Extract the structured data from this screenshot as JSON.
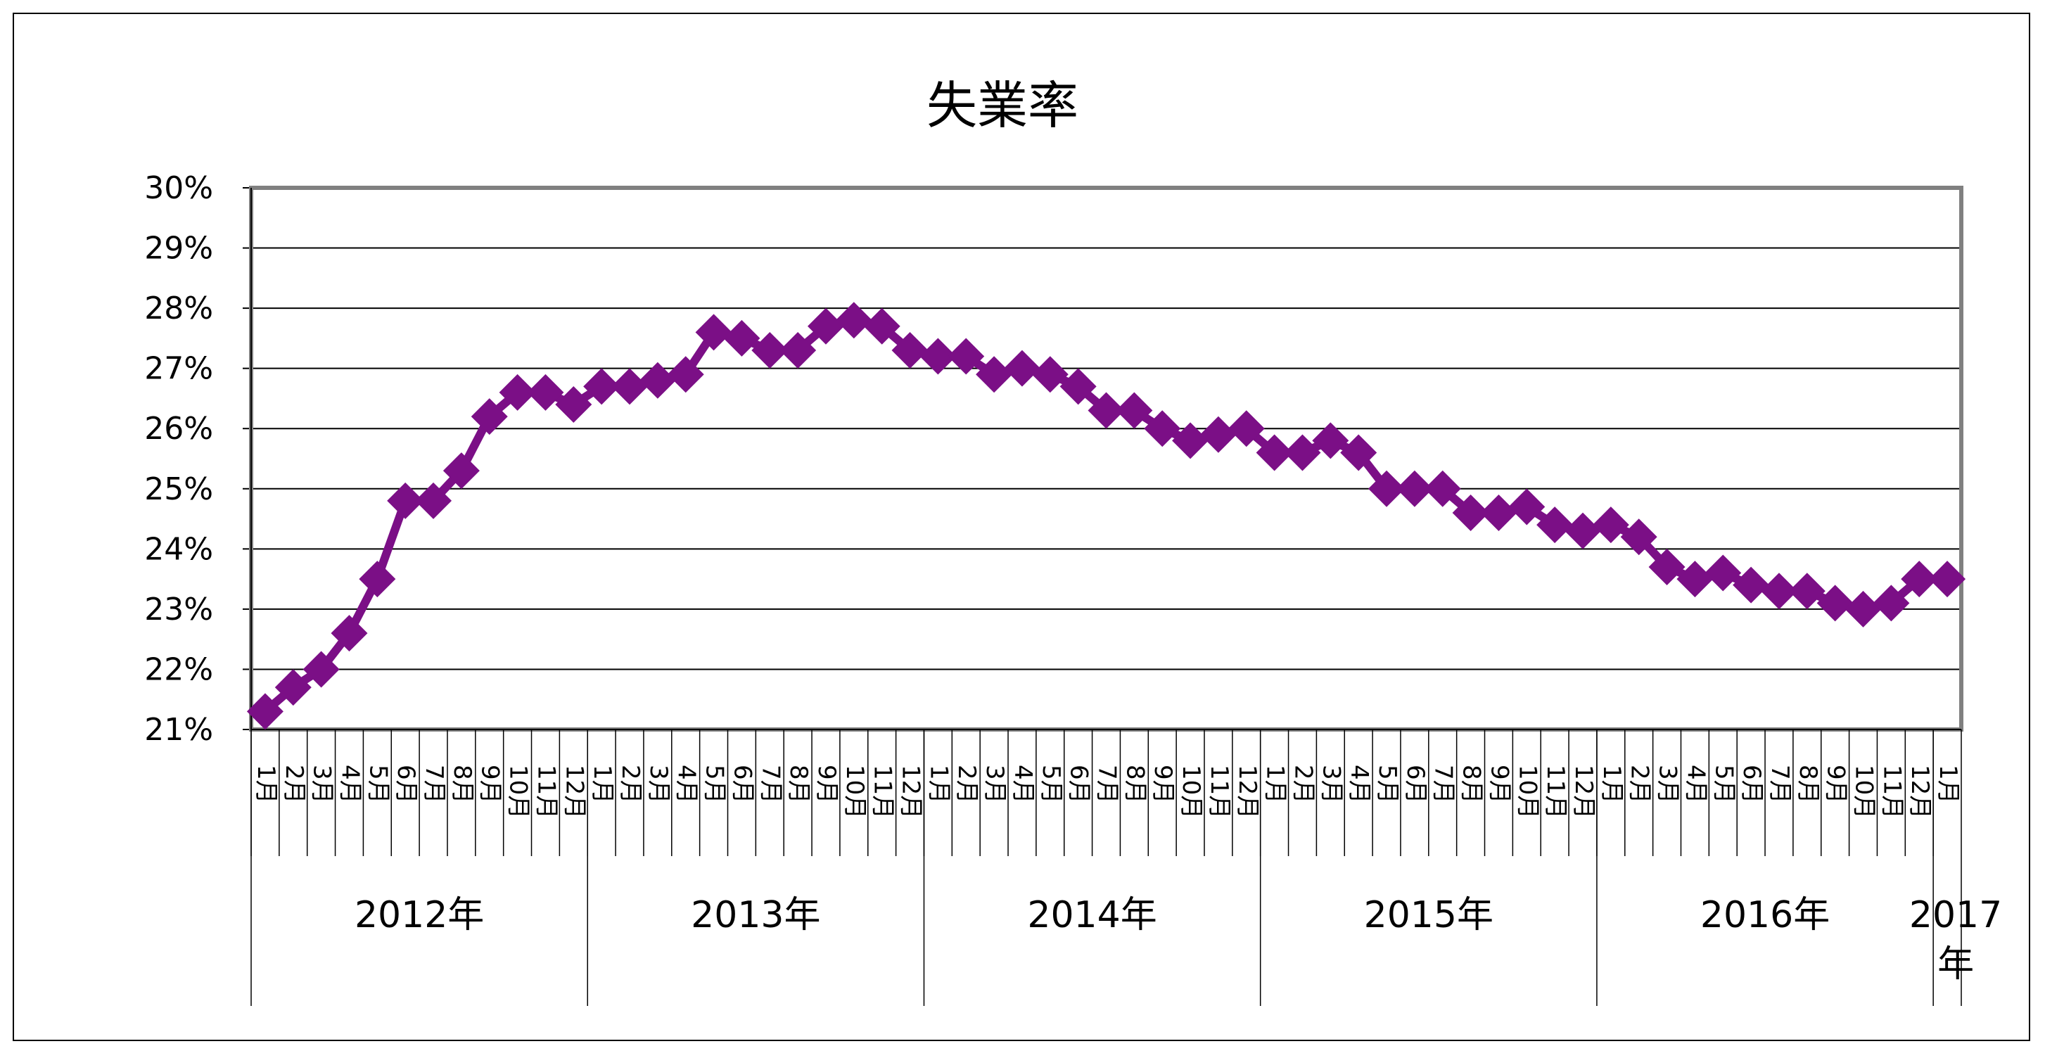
{
  "chart_data": {
    "type": "line",
    "title": "失業率",
    "xlabel": "",
    "ylabel": "",
    "ylim": [
      21,
      30
    ],
    "y_ticks": [
      "21%",
      "22%",
      "23%",
      "24%",
      "25%",
      "26%",
      "27%",
      "28%",
      "29%",
      "30%"
    ],
    "grid": true,
    "legend": "none",
    "colors": {
      "series": "#7b0f86",
      "grid": "#000000",
      "plot_border": "#808080"
    },
    "marker": "diamond",
    "years": [
      {
        "label": "2012年",
        "months": 12
      },
      {
        "label": "2013年",
        "months": 12
      },
      {
        "label": "2014年",
        "months": 12
      },
      {
        "label": "2015年",
        "months": 12
      },
      {
        "label": "2016年",
        "months": 12
      },
      {
        "label": "2017年",
        "months": 1
      }
    ],
    "month_labels": [
      "1月",
      "2月",
      "3月",
      "4月",
      "5月",
      "6月",
      "7月",
      "8月",
      "9月",
      "10月",
      "11月",
      "12月"
    ],
    "series": [
      {
        "values": [
          21.3,
          21.7,
          22.0,
          22.6,
          23.5,
          24.8,
          24.8,
          25.3,
          26.2,
          26.6,
          26.6,
          26.4,
          26.7,
          26.7,
          26.8,
          26.9,
          27.6,
          27.5,
          27.3,
          27.3,
          27.7,
          27.8,
          27.7,
          27.3,
          27.2,
          27.2,
          26.9,
          27.0,
          26.9,
          26.7,
          26.3,
          26.3,
          26.0,
          25.8,
          25.9,
          26.0,
          25.6,
          25.6,
          25.8,
          25.6,
          25.0,
          25.0,
          25.0,
          24.6,
          24.6,
          24.7,
          24.4,
          24.3,
          24.4,
          24.2,
          23.7,
          23.5,
          23.6,
          23.4,
          23.3,
          23.3,
          23.1,
          23.0,
          23.1,
          23.5,
          23.5
        ]
      }
    ]
  }
}
